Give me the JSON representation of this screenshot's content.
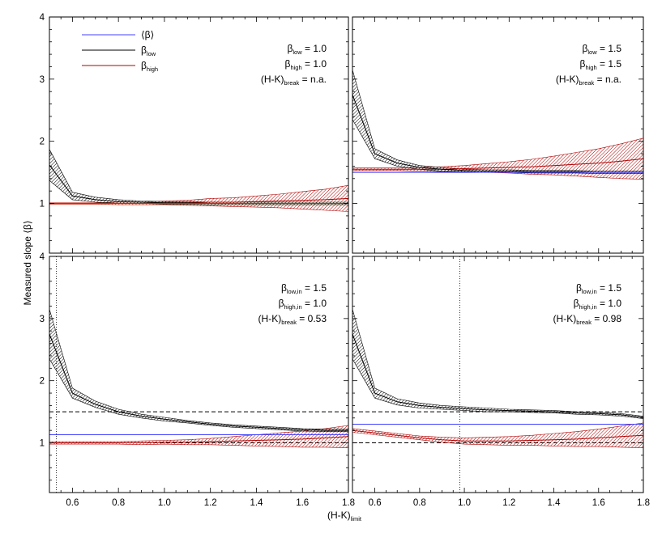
{
  "figure": {
    "xlabel": "(H-K)",
    "xlabel_sub": "limit",
    "ylabel": "Measured slope ⟨β⟩"
  },
  "legend": {
    "entries": [
      {
        "symbol": "⟨β⟩",
        "sub": "",
        "color": "#4040ff"
      },
      {
        "symbol": "β",
        "sub": "low",
        "color": "#000000"
      },
      {
        "symbol": "β",
        "sub": "high",
        "color": "#b00000"
      }
    ]
  },
  "chart_data": [
    {
      "type": "line",
      "panel": "top-left",
      "xlim": [
        0.5,
        1.8
      ],
      "ylim": [
        0.2,
        4.0
      ],
      "xticks": [
        "0.6",
        "0.8",
        "1.0",
        "1.2",
        "1.4",
        "1.6",
        "1.8"
      ],
      "yticks": [
        "1",
        "2",
        "3",
        "4"
      ],
      "annotations": [
        {
          "sym": "β",
          "sub": "low",
          "val": " = 1.0"
        },
        {
          "sym": "β",
          "sub": "high",
          "val": " = 1.0"
        },
        {
          "sym": "(H-K)",
          "sub": "break",
          "val": " = n.a."
        }
      ],
      "vline": null,
      "hlines": [],
      "series": [
        {
          "name": "⟨β⟩",
          "color": "#4040ff",
          "x": [
            0.5,
            1.8
          ],
          "y": [
            1.0,
            1.0
          ]
        },
        {
          "name": "βlow",
          "color": "#000000",
          "x": [
            0.5,
            0.6,
            0.7,
            0.8,
            0.9,
            1.0,
            1.1,
            1.2,
            1.3,
            1.4,
            1.5,
            1.6,
            1.7,
            1.8
          ],
          "y": [
            1.62,
            1.12,
            1.06,
            1.03,
            1.02,
            1.01,
            1.01,
            1.0,
            1.0,
            1.0,
            1.0,
            1.0,
            1.0,
            1.0
          ],
          "err": [
            0.25,
            0.06,
            0.04,
            0.03,
            0.02,
            0.02,
            0.02,
            0.02,
            0.02,
            0.02,
            0.02,
            0.02,
            0.02,
            0.02
          ]
        },
        {
          "name": "βhigh",
          "color": "#b00000",
          "x": [
            0.5,
            0.6,
            0.7,
            0.8,
            0.9,
            1.0,
            1.1,
            1.2,
            1.3,
            1.4,
            1.5,
            1.6,
            1.7,
            1.8
          ],
          "y": [
            1.0,
            1.0,
            1.0,
            1.0,
            1.0,
            1.01,
            1.01,
            1.02,
            1.02,
            1.03,
            1.04,
            1.05,
            1.06,
            1.08
          ],
          "err": [
            0.01,
            0.01,
            0.01,
            0.02,
            0.02,
            0.03,
            0.04,
            0.06,
            0.07,
            0.09,
            0.11,
            0.14,
            0.17,
            0.21
          ]
        }
      ]
    },
    {
      "type": "line",
      "panel": "top-right",
      "xlim": [
        0.5,
        1.8
      ],
      "ylim": [
        0.2,
        4.0
      ],
      "xticks": [
        "0.6",
        "0.8",
        "1.0",
        "1.2",
        "1.4",
        "1.6",
        "1.8"
      ],
      "yticks": [
        "1",
        "2",
        "3",
        "4"
      ],
      "annotations": [
        {
          "sym": "β",
          "sub": "low",
          "val": " = 1.5"
        },
        {
          "sym": "β",
          "sub": "high",
          "val": " = 1.5"
        },
        {
          "sym": "(H-K)",
          "sub": "break",
          "val": " = n.a."
        }
      ],
      "vline": null,
      "hlines": [],
      "series": [
        {
          "name": "⟨β⟩",
          "color": "#4040ff",
          "x": [
            0.5,
            1.8
          ],
          "y": [
            1.5,
            1.5
          ]
        },
        {
          "name": "βlow",
          "color": "#000000",
          "x": [
            0.5,
            0.6,
            0.7,
            0.8,
            0.9,
            1.0,
            1.1,
            1.2,
            1.3,
            1.4,
            1.5,
            1.6,
            1.7,
            1.8
          ],
          "y": [
            2.75,
            1.8,
            1.65,
            1.58,
            1.55,
            1.53,
            1.52,
            1.52,
            1.51,
            1.51,
            1.51,
            1.5,
            1.5,
            1.5
          ],
          "err": [
            0.4,
            0.08,
            0.05,
            0.03,
            0.03,
            0.02,
            0.02,
            0.02,
            0.02,
            0.02,
            0.02,
            0.02,
            0.02,
            0.02
          ]
        },
        {
          "name": "βhigh",
          "color": "#b00000",
          "x": [
            0.5,
            0.6,
            0.7,
            0.8,
            0.9,
            1.0,
            1.1,
            1.2,
            1.3,
            1.4,
            1.5,
            1.6,
            1.7,
            1.8
          ],
          "y": [
            1.55,
            1.55,
            1.55,
            1.55,
            1.55,
            1.56,
            1.57,
            1.58,
            1.59,
            1.61,
            1.63,
            1.65,
            1.68,
            1.72
          ],
          "err": [
            0.02,
            0.02,
            0.02,
            0.03,
            0.04,
            0.05,
            0.07,
            0.09,
            0.12,
            0.15,
            0.19,
            0.23,
            0.28,
            0.33
          ]
        }
      ]
    },
    {
      "type": "line",
      "panel": "bottom-left",
      "xlim": [
        0.5,
        1.8
      ],
      "ylim": [
        0.2,
        4.0
      ],
      "xticks": [
        "0.6",
        "0.8",
        "1.0",
        "1.2",
        "1.4",
        "1.6",
        "1.8"
      ],
      "yticks": [
        "1",
        "2",
        "3",
        "4"
      ],
      "annotations": [
        {
          "sym": "β",
          "sub": "low,in",
          "val": " = 1.5"
        },
        {
          "sym": "β",
          "sub": "high,in",
          "val": " = 1.0"
        },
        {
          "sym": "(H-K)",
          "sub": "break",
          "val": " = 0.53"
        }
      ],
      "vline": 0.53,
      "hlines": [
        1.5,
        1.0
      ],
      "series": [
        {
          "name": "⟨β⟩",
          "color": "#4040ff",
          "x": [
            0.5,
            1.8
          ],
          "y": [
            1.13,
            1.13
          ]
        },
        {
          "name": "βlow",
          "color": "#000000",
          "x": [
            0.5,
            0.6,
            0.7,
            0.8,
            0.9,
            1.0,
            1.1,
            1.2,
            1.3,
            1.4,
            1.5,
            1.6,
            1.7,
            1.8
          ],
          "y": [
            2.75,
            1.8,
            1.62,
            1.5,
            1.43,
            1.38,
            1.34,
            1.3,
            1.27,
            1.25,
            1.23,
            1.21,
            1.2,
            1.2
          ],
          "err": [
            0.4,
            0.08,
            0.05,
            0.04,
            0.03,
            0.03,
            0.02,
            0.02,
            0.02,
            0.02,
            0.02,
            0.02,
            0.02,
            0.02
          ]
        },
        {
          "name": "βhigh",
          "color": "#b00000",
          "x": [
            0.5,
            0.6,
            0.7,
            0.8,
            0.9,
            1.0,
            1.1,
            1.2,
            1.3,
            1.4,
            1.5,
            1.6,
            1.7,
            1.8
          ],
          "y": [
            1.0,
            1.0,
            1.0,
            1.0,
            1.0,
            1.01,
            1.01,
            1.02,
            1.03,
            1.04,
            1.05,
            1.06,
            1.08,
            1.1
          ],
          "err": [
            0.02,
            0.02,
            0.02,
            0.02,
            0.03,
            0.03,
            0.04,
            0.05,
            0.07,
            0.09,
            0.11,
            0.13,
            0.15,
            0.18
          ]
        }
      ]
    },
    {
      "type": "line",
      "panel": "bottom-right",
      "xlim": [
        0.5,
        1.8
      ],
      "ylim": [
        0.2,
        4.0
      ],
      "xticks": [
        "0.6",
        "0.8",
        "1.0",
        "1.2",
        "1.4",
        "1.6",
        "1.8"
      ],
      "yticks": [
        "1",
        "2",
        "3",
        "4"
      ],
      "annotations": [
        {
          "sym": "β",
          "sub": "low,in",
          "val": " = 1.5"
        },
        {
          "sym": "β",
          "sub": "high,in",
          "val": " = 1.0"
        },
        {
          "sym": "(H-K)",
          "sub": "break",
          "val": " = 0.98"
        }
      ],
      "vline": 0.98,
      "hlines": [
        1.5,
        1.0
      ],
      "series": [
        {
          "name": "⟨β⟩",
          "color": "#4040ff",
          "x": [
            0.5,
            1.8
          ],
          "y": [
            1.3,
            1.3
          ]
        },
        {
          "name": "βlow",
          "color": "#000000",
          "x": [
            0.5,
            0.6,
            0.7,
            0.8,
            0.9,
            1.0,
            1.1,
            1.2,
            1.3,
            1.4,
            1.5,
            1.6,
            1.7,
            1.8
          ],
          "y": [
            2.75,
            1.8,
            1.66,
            1.6,
            1.57,
            1.55,
            1.53,
            1.52,
            1.51,
            1.5,
            1.48,
            1.47,
            1.45,
            1.41
          ],
          "err": [
            0.4,
            0.08,
            0.05,
            0.04,
            0.03,
            0.03,
            0.03,
            0.02,
            0.02,
            0.02,
            0.02,
            0.02,
            0.02,
            0.02
          ]
        },
        {
          "name": "βhigh",
          "color": "#b00000",
          "x": [
            0.5,
            0.6,
            0.7,
            0.8,
            0.9,
            1.0,
            1.1,
            1.2,
            1.3,
            1.4,
            1.5,
            1.6,
            1.7,
            1.8
          ],
          "y": [
            1.2,
            1.16,
            1.12,
            1.08,
            1.05,
            1.03,
            1.03,
            1.03,
            1.04,
            1.05,
            1.06,
            1.08,
            1.1,
            1.12
          ],
          "err": [
            0.03,
            0.03,
            0.03,
            0.03,
            0.04,
            0.05,
            0.06,
            0.07,
            0.08,
            0.1,
            0.12,
            0.14,
            0.17,
            0.2
          ]
        }
      ]
    }
  ]
}
